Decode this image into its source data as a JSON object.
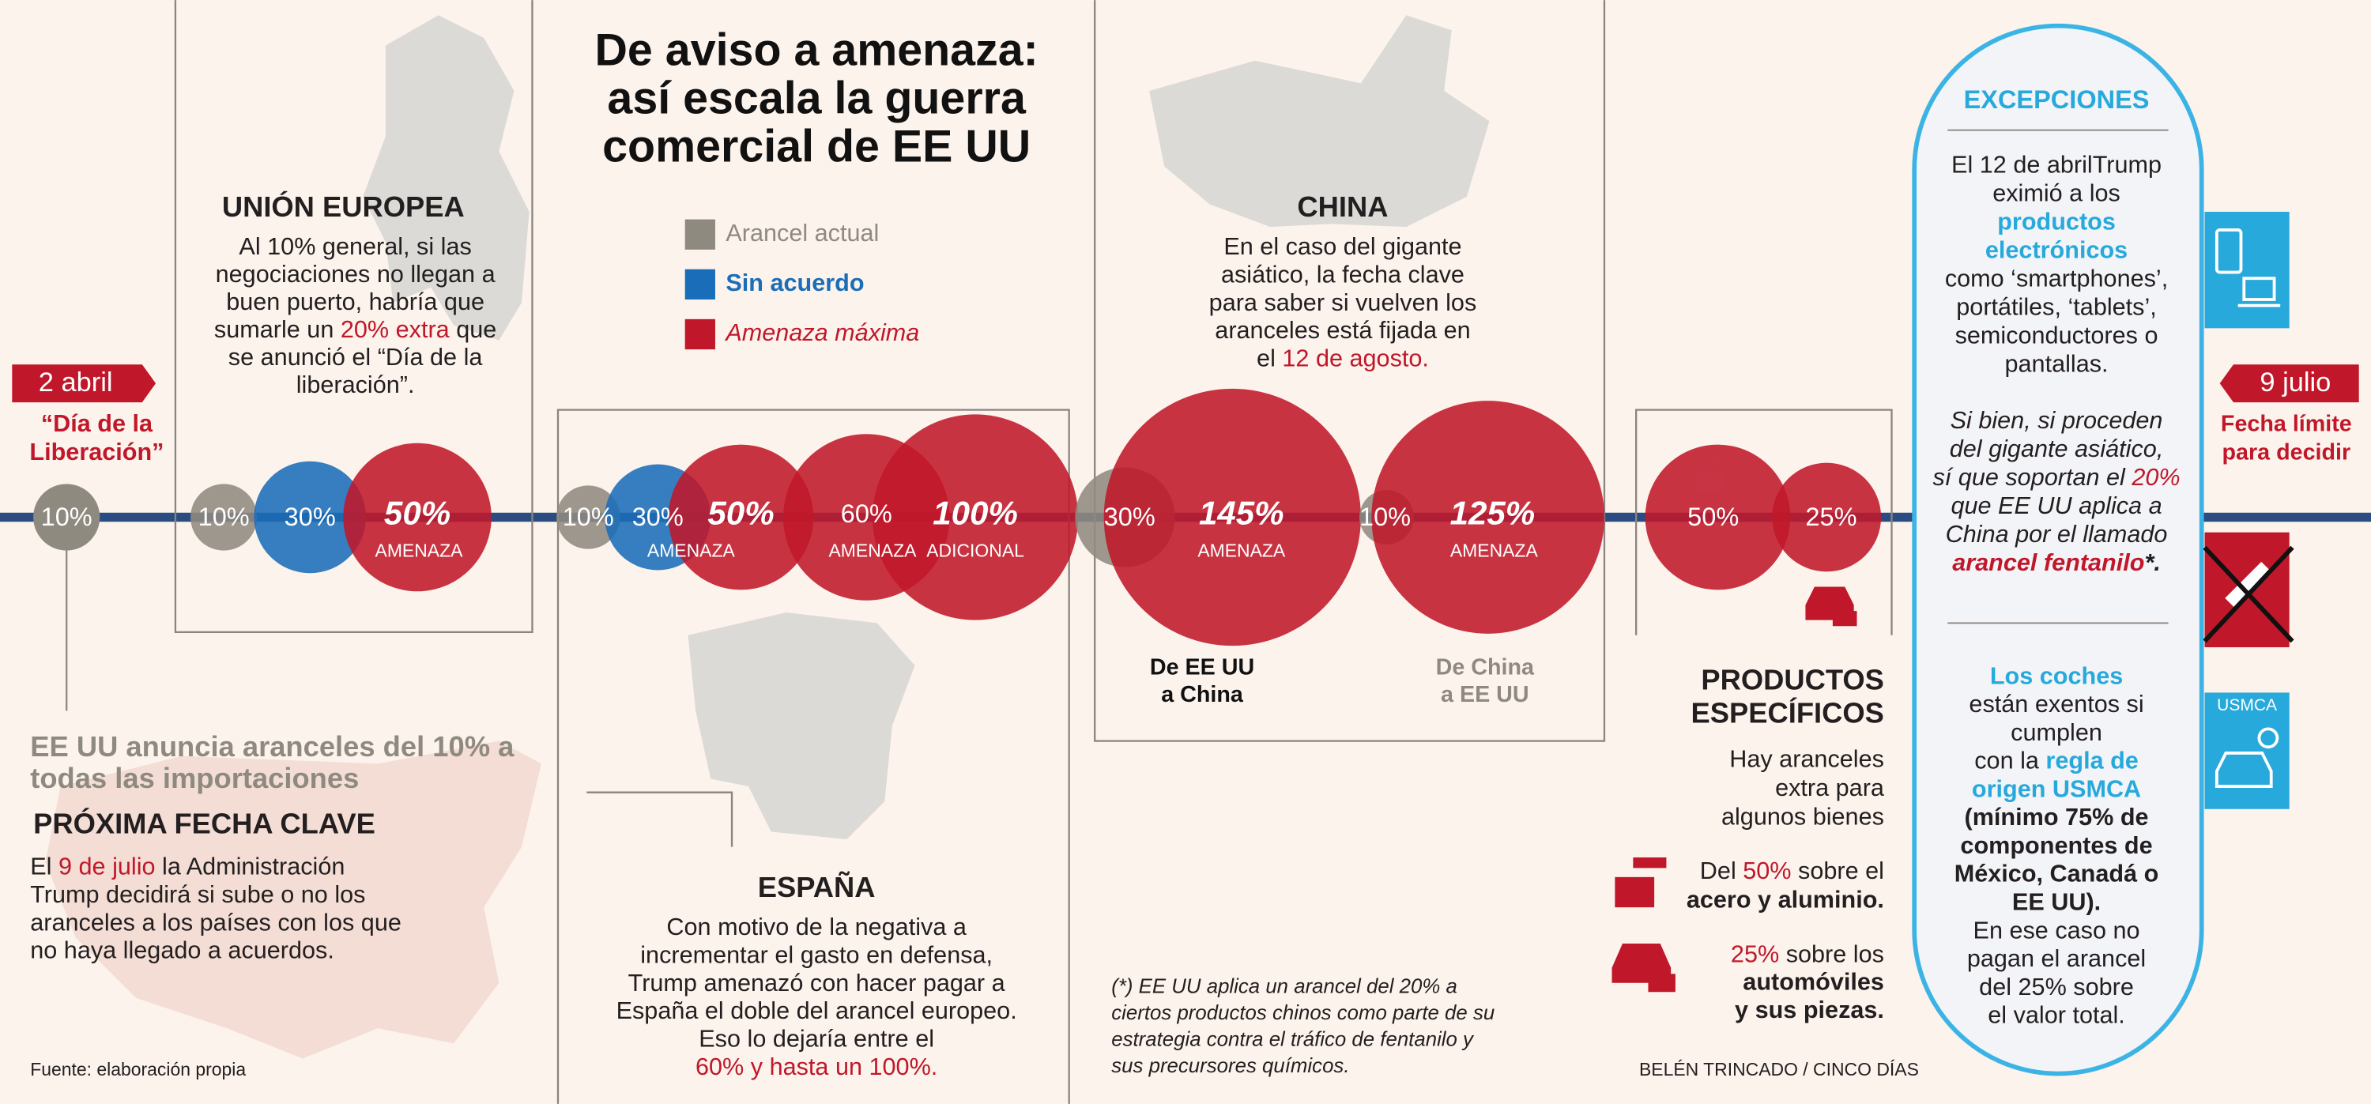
{
  "title": [
    "De aviso a amenaza:",
    "así escala la guerra",
    "comercial de EE UU"
  ],
  "legend": [
    {
      "label": "Arancel actual",
      "color": "#8f8a80"
    },
    {
      "label": "Sin acuerdo",
      "color": "#1a6db8"
    },
    {
      "label": "Amenaza máxima",
      "color": "#c0182a"
    }
  ],
  "timeline": {
    "start": {
      "date": "2 abril",
      "note": [
        "“Día de la",
        "Liberación”"
      ],
      "bubble": {
        "label": "10%",
        "color": "#8f8a80"
      }
    },
    "end": {
      "date": "9 julio",
      "note": [
        "Fecha límite",
        "para decidir"
      ]
    }
  },
  "announcement": [
    "EE UU anuncia aranceles del 10% a",
    "todas las importaciones"
  ],
  "next_key_date": {
    "heading": "PRÓXIMA FECHA CLAVE",
    "lines": [
      [
        "El ",
        {
          "text": "9 de julio",
          "color": "#c0182a"
        },
        " la Administración"
      ],
      "Trump decidirá si sube o no los",
      "aranceles a los países con los que",
      "no haya llegado a acuerdos."
    ]
  },
  "source": "Fuente: elaboración propia",
  "eu": {
    "heading": "UNIÓN EUROPEA",
    "lines": [
      "Al 10% general, si las",
      "negociaciones no llegan a",
      "buen puerto, habría que",
      [
        "sumarle un ",
        {
          "text": "20% extra",
          "color": "#c0182a"
        },
        " que"
      ],
      "se anunció el “Día de la",
      "liberación”."
    ],
    "bubbles": [
      {
        "label": "10%",
        "color": "#8f8a80"
      },
      {
        "label": "30%",
        "color": "#1a6db8"
      },
      {
        "label": "50%",
        "sub": "AMENAZA",
        "color": "#c0182a"
      }
    ]
  },
  "spain": {
    "heading": "ESPAÑA",
    "lines": [
      "Con motivo de la negativa a",
      "incrementar el gasto en defensa,",
      "Trump amenazó con hacer pagar a",
      "España el doble del arancel europeo.",
      "Eso lo dejaría entre el",
      [
        {
          "text": "60% y hasta un 100%.",
          "color": "#c0182a"
        }
      ]
    ],
    "bubbles": [
      {
        "label": "10%",
        "color": "#8f8a80"
      },
      {
        "label": "30%",
        "color": "#1a6db8"
      },
      {
        "label": "50%",
        "sub": "AMENAZA",
        "color": "#c0182a"
      },
      {
        "label": "60%",
        "sub": "AMENAZA",
        "color": "#c0182a"
      },
      {
        "label": "100%",
        "sub": "ADICIONAL",
        "color": "#c0182a"
      }
    ]
  },
  "china": {
    "heading": "CHINA",
    "lines": [
      "En el caso del gigante",
      "asiático, la fecha clave",
      "para saber si vuelven los",
      "aranceles está fijada en",
      [
        "el ",
        {
          "text": "12 de agosto.",
          "color": "#c0182a"
        }
      ]
    ],
    "bubbles": [
      {
        "label": "30%",
        "color": "#8f8a80"
      },
      {
        "label": "145%",
        "sub": "AMENAZA",
        "color": "#c0182a"
      },
      {
        "label": "10%",
        "color": "#8f8a80"
      },
      {
        "label": "125%",
        "sub": "AMENAZA",
        "color": "#c0182a"
      }
    ],
    "directions": [
      [
        "De EE UU",
        "a China"
      ],
      [
        "De China",
        "a EE UU"
      ]
    ]
  },
  "footnote": [
    "(*) EE UU aplica un arancel del 20% a",
    "ciertos productos chinos como parte de su",
    "estrategia contra el tráfico de fentanilo y",
    "sus precursores químicos."
  ],
  "products": {
    "heading": [
      "PRODUCTOS",
      "ESPECÍFICOS"
    ],
    "intro": [
      "Hay aranceles",
      "extra para",
      "algunos bienes"
    ],
    "steel": [
      [
        "Del ",
        {
          "text": "50%",
          "color": "#c0182a"
        },
        " sobre el"
      ],
      [
        {
          "text": "acero y aluminio.",
          "weight": "bold"
        }
      ]
    ],
    "cars": [
      [
        {
          "text": "25%",
          "color": "#c0182a"
        },
        " sobre los"
      ],
      [
        {
          "text": "automóviles",
          "weight": "bold"
        }
      ],
      [
        {
          "text": "y sus piezas.",
          "weight": "bold"
        }
      ]
    ],
    "bubbles": [
      {
        "label": "50%",
        "color": "#c0182a"
      },
      {
        "label": "25%",
        "color": "#c0182a"
      }
    ]
  },
  "credit": "BELÉN TRINCADO / CINCO DÍAS",
  "exceptions": {
    "heading": "EXCEPCIONES",
    "electronics": [
      "El 12 de abrilTrump",
      "eximió a los",
      [
        {
          "text": "productos",
          "color": "#27a9dc",
          "weight": "bold"
        }
      ],
      [
        {
          "text": "electrónicos",
          "color": "#27a9dc",
          "weight": "bold"
        }
      ],
      "como ‘smartphones’,",
      "portátiles, ‘tablets’,",
      "semiconductores o",
      "pantallas."
    ],
    "fentanyl": [
      "Si bien, si proceden",
      "del gigante asiático,",
      [
        "sí que soportan el ",
        {
          "text": "20%",
          "color": "#c0182a"
        }
      ],
      "que EE UU aplica a",
      "China por el llamado",
      [
        {
          "text": "arancel fentanilo",
          "color": "#c0182a",
          "weight": "bold"
        },
        {
          "text": "*.",
          "weight": "bold"
        }
      ]
    ],
    "cars": [
      [
        {
          "text": "Los coches",
          "color": "#27a9dc",
          "weight": "bold"
        }
      ],
      "están exentos si",
      "cumplen",
      [
        "con la ",
        {
          "text": "regla de",
          "color": "#27a9dc",
          "weight": "bold"
        }
      ],
      [
        {
          "text": "origen USMCA",
          "color": "#27a9dc",
          "weight": "bold"
        }
      ],
      [
        {
          "text": "(mínimo 75% de",
          "weight": "bold"
        }
      ],
      [
        {
          "text": "componentes de",
          "weight": "bold"
        }
      ],
      [
        {
          "text": "México, Canadá o",
          "weight": "bold"
        }
      ],
      [
        {
          "text": "EE UU).",
          "weight": "bold"
        }
      ],
      "En ese caso no",
      "pagan el arancel",
      "del 25% sobre",
      "el valor total."
    ],
    "usmca_icon": "USMCA"
  }
}
